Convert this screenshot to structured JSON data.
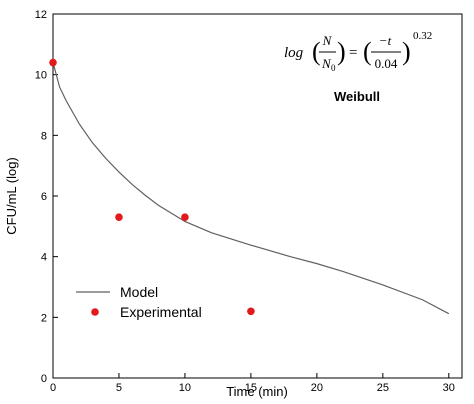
{
  "chart_data": {
    "type": "scatter",
    "xlabel": "Time (min)",
    "ylabel": "CFU/mL (log)",
    "xlim": [
      0,
      31
    ],
    "ylim": [
      0,
      12
    ],
    "xticks": [
      0,
      5,
      10,
      15,
      20,
      25,
      30
    ],
    "yticks": [
      0,
      2,
      4,
      6,
      8,
      10,
      12
    ],
    "grid": false,
    "legend_position": "bottom-left",
    "series": [
      {
        "name": "Model",
        "kind": "line",
        "color": "#606060",
        "x": [
          0,
          0.5,
          1,
          2,
          3,
          4,
          5,
          6,
          7,
          8,
          10,
          12,
          15,
          18,
          20,
          22,
          25,
          28,
          30
        ],
        "y": [
          10.4,
          9.59,
          9.14,
          8.37,
          7.75,
          7.24,
          6.79,
          6.38,
          6.02,
          5.69,
          5.16,
          4.79,
          4.38,
          4.0,
          3.77,
          3.51,
          3.07,
          2.58,
          2.12
        ]
      },
      {
        "name": "Experimental",
        "kind": "scatter",
        "color": "#e31a1c",
        "x": [
          0,
          5,
          10,
          15
        ],
        "y": [
          10.4,
          5.3,
          5.3,
          2.2
        ]
      }
    ],
    "annotations": {
      "equation": {
        "log": "log",
        "N": "N",
        "N0_base": "N",
        "N0_sub": "0",
        "equals": "=",
        "numerator": "−t",
        "denominator": "0.04",
        "exponent": "0.32"
      },
      "model_name": "Weibull"
    }
  }
}
